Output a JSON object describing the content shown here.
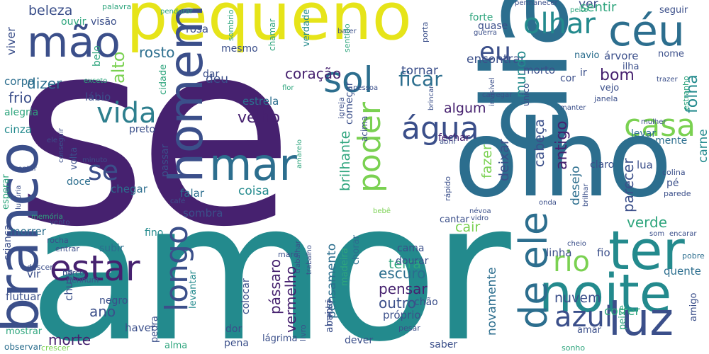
{
  "palette": {
    "purple": "#46216f",
    "indigo": "#3b4f8a",
    "blue": "#2c6e8e",
    "teal": "#238a8d",
    "green": "#2ea57d",
    "lime": "#7ad151",
    "yellow": "#e6e419",
    "dark": "#440154"
  },
  "words": {
    "se_big": "se",
    "amor": "amor",
    "dia": "dia",
    "pequeno": "pequeno",
    "olho": "olho",
    "branco": "branco",
    "noite": "noite",
    "homem": "homem",
    "ter": "ter",
    "mao": "mão",
    "ceu": "céu",
    "mar": "mar",
    "luz": "luz",
    "azul": "azul",
    "de_ele": "de ele",
    "estar": "estar",
    "sol": "sol",
    "olhar": "olhar",
    "vida": "vida",
    "casa": "casa",
    "agua": "água",
    "poder": "poder",
    "rio": "rio",
    "longo": "longo",
    "eu": "eu",
    "se_small": "se",
    "beleza": "beleza",
    "ver": "ver",
    "sentir": "sentir",
    "rosto": "rosto",
    "coracao": "coração",
    "ficar": "ficar",
    "alto": "alto",
    "viver": "viver",
    "belo": "belo",
    "dizer": "dizer",
    "frio": "frio",
    "corpo": "corpo",
    "deu": "deu",
    "velho": "velho",
    "encontrar": "encontrar",
    "tornar": "tornar",
    "algum": "algum",
    "bom": "bom",
    "mundo": "mundo",
    "cabeca": "cabeça",
    "antigo": "antigo",
    "desejo": "desejo",
    "parecer": "parecer",
    "folha": "folha",
    "carne": "carne",
    "estrela": "estrela",
    "labio": "lábio",
    "alegria": "alegria",
    "cinza": "cinza",
    "preto": "preto",
    "comecar": "começar",
    "brilhante": "brilhante",
    "fazer": "fazer",
    "deixar": "deixar",
    "fechar": "fechar",
    "lua": "lua",
    "claro": "claro",
    "mente": "mente",
    "verde": "verde",
    "cair": "cair",
    "terra": "terra",
    "pensar": "pensar",
    "escuro": "escuro",
    "outro": "outro",
    "nuvem": "nuvem",
    "correr": "correr",
    "morte": "morte",
    "ano": "ano",
    "chuva": "chuva",
    "negro": "negro",
    "haver": "haver",
    "passaro": "pássaro",
    "vermelho": "vermelho",
    "pensamento": "pensamento",
    "abaixo": "abaixo",
    "novamente": "novamente",
    "coisa": "coisa",
    "chegar": "chegar",
    "doce": "doce",
    "volta": "volta",
    "falar": "falar",
    "sombra": "sombra",
    "fino": "fino",
    "passar": "passar",
    "morrer": "morrer",
    "crianca": "criança",
    "vir": "vir",
    "flutuar": "flutuar",
    "mostrar": "mostrar",
    "observar": "observar",
    "crescer": "crescer",
    "alma": "alma",
    "pedra": "pedra",
    "levantar": "levantar",
    "dor": "dor",
    "pena": "pena",
    "lagrima": "lágrima",
    "livro": "livro",
    "dever": "dever",
    "saber": "saber",
    "amar": "amar",
    "sonho": "sonho",
    "amigo": "amigo",
    "pobre": "pobre",
    "quente": "quente",
    "peixe": "peixe",
    "linha": "linha",
    "fio": "fio",
    "subir": "subir",
    "cama": "cama",
    "dourar": "dourar",
    "colocar": "colocar",
    "madeira": "madeira",
    "chorar": "chorar",
    "chao": "chão",
    "proprio": "próprio",
    "pesar": "pesar",
    "cantar": "cantar",
    "manha": "manhã",
    "trabalho": "trabalho",
    "trabalhar": "trabalhar",
    "mare": "maré",
    "nenhum": "nenhum",
    "barco": "barco",
    "descer": "descer",
    "entrar": "entrar",
    "rocha": "rocha",
    "vento": "vento",
    "memoria": "memória",
    "esperar": "esperar",
    "sentar": "sentar",
    "luxuria": "luxúria",
    "cafe": "café",
    "bebe": "bebê",
    "nevoa": "névoa",
    "vidro": "vidro",
    "onda": "onda",
    "cheio": "cheio",
    "brilhar": "brilhar",
    "colina": "colina",
    "pe": "pé",
    "parede": "parede",
    "som": "som",
    "encarar": "encarar",
    "rapido": "rápido",
    "abrir": "abrir",
    "mulher": "mulher",
    "levar": "levar",
    "brincar": "brincar",
    "amarelo": "amarelo",
    "conseguir": "conseguir",
    "ele": "ele",
    "minuto": "minuto",
    "acima": "acima",
    "igreja": "igreja",
    "pessoa": "pessoa",
    "invisivel": "invisível",
    "carregar": "carregar",
    "unico": "único",
    "manter": "manter",
    "janela": "janela",
    "vejo": "vejo",
    "cor": "cor",
    "ir": "ir",
    "navio": "navio",
    "arvore": "árvore",
    "nome": "nome",
    "ilha": "ilha",
    "trazer": "trazer",
    "estranho": "estranho",
    "morto": "morto",
    "quase": "quase",
    "guerra": "guerra",
    "forte": "forte",
    "seguir": "seguir",
    "peito": "peito",
    "permanecer": "permanecer",
    "porta": "porta",
    "bater": "bater",
    "sentido": "sentido",
    "verdade": "verdade",
    "chamar": "chamar",
    "mesmo": "mesmo",
    "sombrio": "sombrio",
    "rosa": "rosa",
    "pendurar": "pendurar",
    "palavra": "palavra",
    "ouvir": "ouvir",
    "visao": "visão",
    "cidade": "cidade",
    "exceto": "exceto",
    "flor": "flor",
    "dar": "dar"
  }
}
